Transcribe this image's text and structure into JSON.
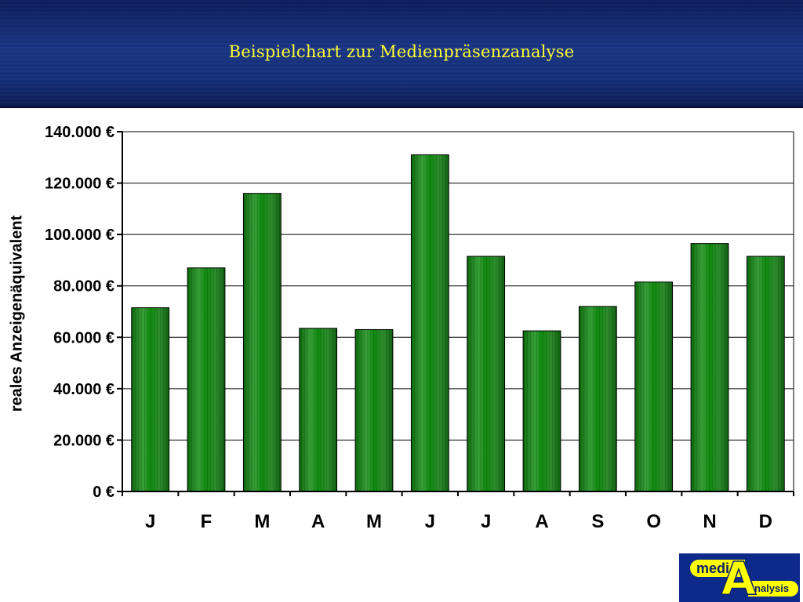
{
  "header": {
    "title": "Beispielchart zur Medienpräsenzanalyse"
  },
  "chart_data": {
    "type": "bar",
    "title": "Beispielchart zur Medienpräsenzanalyse",
    "xlabel": "",
    "ylabel": "reales Anzeigenäquivalent",
    "categories": [
      "J",
      "F",
      "M",
      "A",
      "M",
      "J",
      "J",
      "A",
      "S",
      "O",
      "N",
      "D"
    ],
    "values": [
      71500,
      87000,
      116000,
      63500,
      63000,
      131000,
      91500,
      62500,
      72000,
      81500,
      96500,
      91500
    ],
    "ylim": [
      0,
      140000
    ],
    "yticks": [
      0,
      20000,
      40000,
      60000,
      80000,
      100000,
      120000,
      140000
    ],
    "ytick_labels": [
      "0 €",
      "20.000 €",
      "40.000 €",
      "60.000 €",
      "80.000 €",
      "100.000 €",
      "120.000 €",
      "140.000 €"
    ],
    "grid": true,
    "bar_color": "#2f8a2f"
  },
  "logo": {
    "text_top": "medi",
    "text_letter": "A",
    "text_bottom": "nalysis"
  }
}
